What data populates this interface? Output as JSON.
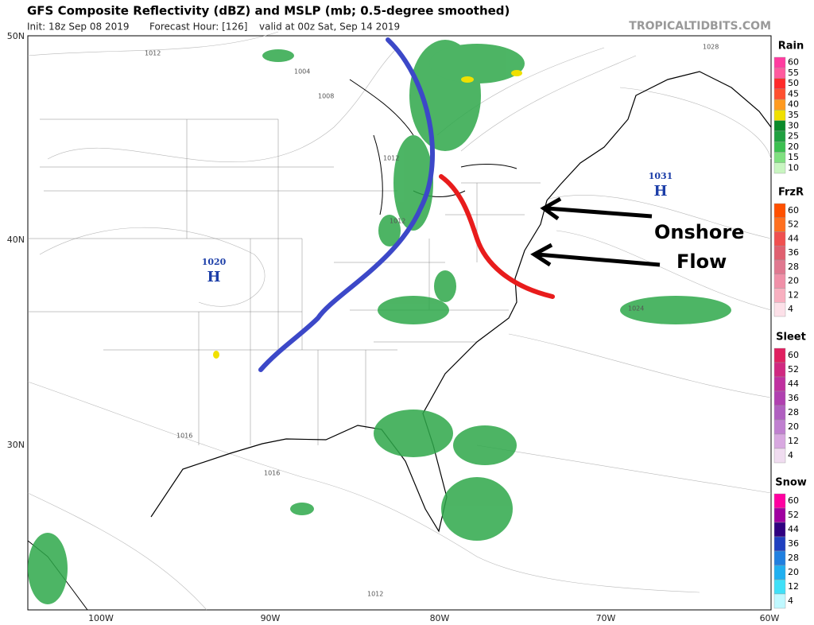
{
  "header": {
    "title": "GFS Composite Reflectivity (dBZ) and MSLP (mb; 0.5-degree smoothed)",
    "init": "Init: 18z Sep 08 2019",
    "forecast_hour": "Forecast Hour: [126]",
    "valid": "valid at 00z Sat, Sep 14 2019",
    "source": "TROPICALTIDBITS.COM"
  },
  "axes": {
    "lat_labels": [
      "50N",
      "40N",
      "30N"
    ],
    "lon_labels": [
      "100W",
      "90W",
      "80W",
      "70W",
      "60W"
    ]
  },
  "isobar_labels": [
    "1012",
    "1004",
    "1008",
    "1012",
    "1028",
    "1016",
    "1016",
    "1024",
    "1012",
    "1012"
  ],
  "highs": [
    {
      "pressure": "1020",
      "symbol": "H"
    },
    {
      "pressure": "1031",
      "symbol": "H"
    }
  ],
  "annotations": [
    "Onshore",
    "Flow"
  ],
  "legend": [
    {
      "title": "Rain",
      "levels": [
        60,
        55,
        50,
        45,
        40,
        35,
        30,
        25,
        20,
        15,
        10
      ],
      "colors": [
        "#ff3ca0",
        "#ff5a9e",
        "#ff2a2a",
        "#ff5030",
        "#ff9a20",
        "#f0e000",
        "#0a8a2a",
        "#20a040",
        "#3cc050",
        "#80e080",
        "#c8f5c0"
      ]
    },
    {
      "title": "FrzR",
      "levels": [
        60,
        52,
        44,
        36,
        28,
        20,
        12,
        4
      ],
      "colors": [
        "#ff5000",
        "#ff7020",
        "#f05050",
        "#e06070",
        "#e07890",
        "#f090a8",
        "#f8b0c0",
        "#fce0e8"
      ]
    },
    {
      "title": "Sleet",
      "levels": [
        60,
        52,
        44,
        36,
        28,
        20,
        12,
        4
      ],
      "colors": [
        "#e02060",
        "#d02880",
        "#c030a0",
        "#b040b0",
        "#b060c0",
        "#c080d0",
        "#d8a8e0",
        "#f0dcf0"
      ]
    },
    {
      "title": "Snow",
      "levels": [
        60,
        52,
        44,
        36,
        28,
        20,
        12,
        4
      ],
      "colors": [
        "#ff00a0",
        "#a000a0",
        "#300080",
        "#2040c0",
        "#2080e0",
        "#20b0f0",
        "#40e0f8",
        "#c0f8ff"
      ]
    }
  ]
}
